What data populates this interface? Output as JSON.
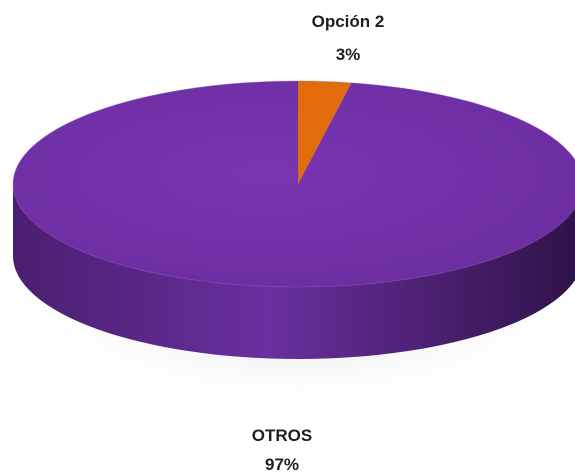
{
  "chart_data": {
    "type": "pie",
    "style": "3d",
    "slices": [
      {
        "name": "Opción 2",
        "value": 3,
        "percent_label": "3%",
        "color": "#E36C0A"
      },
      {
        "name": "OTROS",
        "value": 97,
        "percent_label": "97%",
        "color": "#7030A0"
      }
    ],
    "legend": "none",
    "data_labels": "category and percent"
  }
}
